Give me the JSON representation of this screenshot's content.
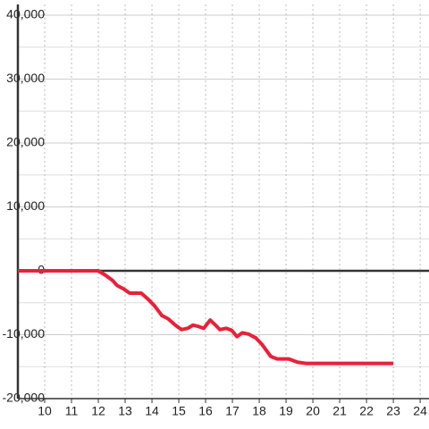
{
  "chart_data": {
    "type": "line",
    "x": [
      9,
      12,
      12.27,
      12.53,
      12.7,
      12.93,
      13.17,
      13.6,
      13.87,
      14.1,
      14.37,
      14.6,
      14.87,
      15.1,
      15.33,
      15.53,
      15.73,
      15.93,
      16.17,
      16.37,
      16.53,
      16.77,
      16.97,
      17.17,
      17.37,
      17.6,
      17.87,
      18.1,
      18.43,
      18.67,
      19.1,
      19.43,
      19.77,
      23
    ],
    "series": [
      {
        "color": "#e8213a",
        "values": [
          0,
          0,
          -700,
          -1500,
          -2300,
          -2800,
          -3500,
          -3500,
          -4500,
          -5500,
          -7000,
          -7500,
          -8500,
          -9200,
          -9000,
          -8500,
          -8700,
          -9000,
          -7700,
          -8500,
          -9200,
          -9000,
          -9300,
          -10300,
          -9700,
          -9900,
          -10500,
          -11500,
          -13400,
          -13800,
          -13800,
          -14300,
          -14500,
          -14500
        ]
      }
    ],
    "xlim": [
      9,
      24.33
    ],
    "xticks": [
      10,
      11,
      12,
      13,
      14,
      15,
      16,
      17,
      18,
      19,
      20,
      21,
      22,
      23,
      24
    ],
    "ylim": [
      -20000,
      40000
    ],
    "yticks": [
      {
        "value": -20000,
        "label": "-20,000"
      },
      {
        "value": -10000,
        "label": "-10,000"
      },
      0,
      {
        "value": 10000,
        "label": "10,000"
      },
      {
        "value": 20000,
        "label": "20,000"
      },
      {
        "value": 30000,
        "label": "30,000"
      },
      {
        "value": 40000,
        "label": "40,000"
      }
    ],
    "yminorticks": [
      -15000,
      -5000,
      5000,
      15000,
      25000,
      35000
    ],
    "grid": true
  }
}
